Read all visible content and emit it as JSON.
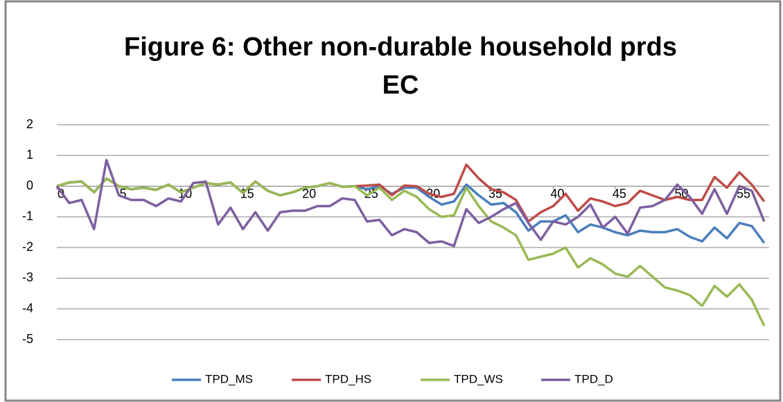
{
  "chart_data": {
    "type": "line",
    "title": [
      "Figure 6: Other non-durable household prds",
      "EC"
    ],
    "x": [
      0,
      1,
      2,
      3,
      4,
      5,
      6,
      7,
      8,
      9,
      10,
      11,
      12,
      13,
      14,
      15,
      16,
      17,
      18,
      19,
      20,
      21,
      22,
      23,
      24,
      25,
      26,
      27,
      28,
      29,
      30,
      31,
      32,
      33,
      34,
      35,
      36,
      37,
      38,
      39,
      40,
      41,
      42,
      43,
      44,
      45,
      46,
      47,
      48,
      49,
      50,
      51,
      52,
      53,
      54,
      55,
      56,
      57
    ],
    "xlim": [
      0,
      57.4
    ],
    "xticks": [
      0,
      5,
      10,
      15,
      20,
      25,
      30,
      35,
      40,
      45,
      50,
      55
    ],
    "ylim": [
      -5,
      2
    ],
    "yticks": [
      2,
      1,
      0,
      -1,
      -2,
      -3,
      -4,
      -5
    ],
    "grid": true,
    "legend": "bottom",
    "series": [
      {
        "name": "TPD_MS",
        "color": "#4a7ebb",
        "values": [
          0,
          0.12,
          0.15,
          -0.2,
          0.25,
          0,
          -0.1,
          -0.05,
          -0.12,
          0.05,
          -0.2,
          -0.05,
          0.1,
          0.05,
          0.12,
          -0.22,
          0.15,
          -0.15,
          -0.3,
          -0.2,
          -0.05,
          0,
          0.1,
          -0.02,
          0,
          -0.1,
          0,
          -0.25,
          -0.05,
          -0.05,
          -0.35,
          -0.6,
          -0.5,
          0.05,
          -0.3,
          -0.6,
          -0.55,
          -0.85,
          -1.45,
          -1.15,
          -1.15,
          -0.95,
          -1.5,
          -1.25,
          -1.35,
          -1.5,
          -1.6,
          -1.45,
          -1.5,
          -1.5,
          -1.4,
          -1.65,
          -1.8,
          -1.35,
          -1.7,
          -1.2,
          -1.3,
          -1.85
        ]
      },
      {
        "name": "TPD_HS",
        "color": "#be4b48",
        "values": [
          0,
          0.12,
          0.15,
          -0.2,
          0.25,
          0,
          -0.1,
          -0.05,
          -0.12,
          0.05,
          -0.2,
          -0.05,
          0.1,
          0.05,
          0.12,
          -0.22,
          0.15,
          -0.15,
          -0.3,
          -0.2,
          -0.05,
          0,
          0.1,
          -0.02,
          0,
          0.02,
          0.05,
          -0.3,
          0.02,
          0,
          -0.25,
          -0.35,
          -0.25,
          0.7,
          0.25,
          -0.1,
          -0.2,
          -0.45,
          -1.15,
          -0.85,
          -0.65,
          -0.25,
          -0.8,
          -0.4,
          -0.5,
          -0.65,
          -0.55,
          -0.15,
          -0.3,
          -0.45,
          -0.35,
          -0.45,
          -0.45,
          0.3,
          -0.05,
          0.45,
          0.05,
          -0.5
        ]
      },
      {
        "name": "TPD_WS",
        "color": "#98b954",
        "values": [
          0,
          0.12,
          0.15,
          -0.2,
          0.25,
          0,
          -0.1,
          -0.05,
          -0.12,
          0.05,
          -0.2,
          -0.05,
          0.1,
          0.05,
          0.12,
          -0.22,
          0.15,
          -0.15,
          -0.3,
          -0.2,
          -0.05,
          0,
          0.1,
          -0.02,
          0,
          -0.3,
          -0.05,
          -0.45,
          -0.15,
          -0.35,
          -0.75,
          -1.0,
          -0.95,
          -0.05,
          -0.65,
          -1.15,
          -1.35,
          -1.6,
          -2.4,
          -2.3,
          -2.2,
          -2.0,
          -2.65,
          -2.35,
          -2.55,
          -2.85,
          -2.95,
          -2.6,
          -2.95,
          -3.3,
          -3.4,
          -3.55,
          -3.9,
          -3.25,
          -3.6,
          -3.2,
          -3.7,
          -4.55
        ]
      },
      {
        "name": "TPD_D",
        "color": "#7d5fa0",
        "values": [
          0,
          -0.55,
          -0.45,
          -1.4,
          0.85,
          -0.3,
          -0.45,
          -0.45,
          -0.65,
          -0.4,
          -0.5,
          0.1,
          0.15,
          -1.25,
          -0.7,
          -1.4,
          -0.85,
          -1.45,
          -0.85,
          -0.8,
          -0.8,
          -0.65,
          -0.65,
          -0.4,
          -0.45,
          -1.15,
          -1.1,
          -1.6,
          -1.4,
          -1.5,
          -1.85,
          -1.8,
          -1.95,
          -0.75,
          -1.2,
          -1.0,
          -0.75,
          -0.55,
          -1.2,
          -1.75,
          -1.15,
          -1.25,
          -1.0,
          -0.6,
          -1.35,
          -1.0,
          -1.55,
          -0.7,
          -0.65,
          -0.45,
          0.05,
          -0.35,
          -0.9,
          -0.1,
          -0.9,
          0,
          -0.15,
          -1.15
        ]
      }
    ]
  }
}
